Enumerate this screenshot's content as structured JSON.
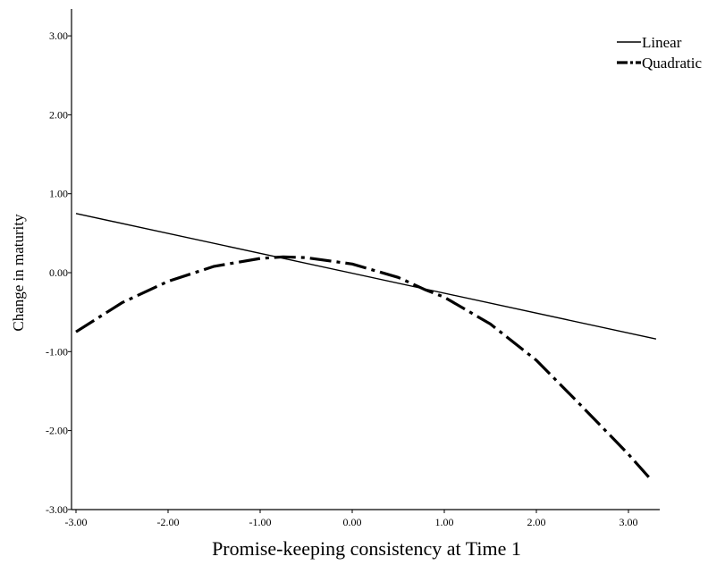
{
  "chart_data": {
    "type": "line",
    "xlabel": "Promise-keeping consistency at Time 1",
    "ylabel": "Change in maturity",
    "xlim": [
      -3.0,
      3.3
    ],
    "ylim": [
      -3.0,
      3.3
    ],
    "x_ticks": [
      "-3.00",
      "-2.00",
      "-1.00",
      "0.00",
      "1.00",
      "2.00",
      "3.00"
    ],
    "y_ticks": [
      "-3.00",
      "-2.00",
      "-1.00",
      "0.00",
      "1.00",
      "2.00",
      "3.00"
    ],
    "legend_position": "top-right",
    "grid": false,
    "series": [
      {
        "name": "Linear",
        "style": "solid",
        "color": "#000000",
        "x": [
          -3.0,
          3.3
        ],
        "y": [
          0.75,
          -0.84
        ]
      },
      {
        "name": "Quadratic",
        "style": "dash-dot",
        "color": "#000000",
        "x": [
          -3.0,
          -2.5,
          -2.0,
          -1.5,
          -1.0,
          -0.75,
          -0.5,
          0.0,
          0.5,
          0.8,
          1.0,
          1.5,
          2.0,
          2.5,
          3.0,
          3.25
        ],
        "y": [
          -0.75,
          -0.38,
          -0.11,
          0.08,
          0.18,
          0.2,
          0.19,
          0.11,
          -0.06,
          -0.22,
          -0.31,
          -0.65,
          -1.11,
          -1.7,
          -2.3,
          -2.63
        ]
      }
    ]
  }
}
